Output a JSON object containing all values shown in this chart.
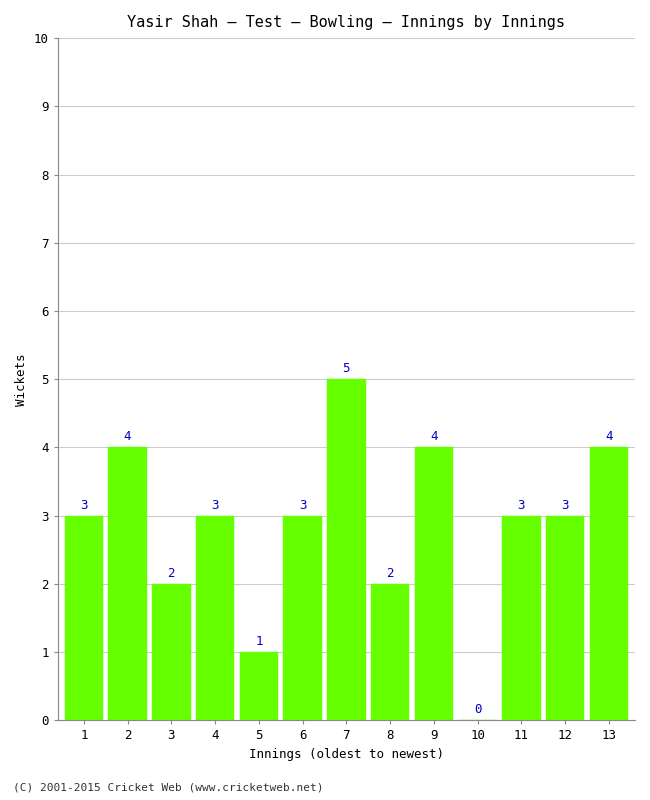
{
  "title": "Yasir Shah – Test – Bowling – Innings by Innings",
  "xlabel": "Innings (oldest to newest)",
  "ylabel": "Wickets",
  "categories": [
    "1",
    "2",
    "3",
    "4",
    "5",
    "6",
    "7",
    "8",
    "9",
    "10",
    "11",
    "12",
    "13"
  ],
  "values": [
    3,
    4,
    2,
    3,
    1,
    3,
    5,
    2,
    4,
    0,
    3,
    3,
    4
  ],
  "bar_color": "#66FF00",
  "bar_edge_color": "#66FF00",
  "label_color": "#0000CC",
  "background_color": "#FFFFFF",
  "ylim": [
    0,
    10
  ],
  "yticks": [
    0,
    1,
    2,
    3,
    4,
    5,
    6,
    7,
    8,
    9,
    10
  ],
  "grid_color": "#CCCCCC",
  "title_fontsize": 11,
  "axis_fontsize": 9,
  "tick_fontsize": 9,
  "label_fontsize": 9,
  "footer": "(C) 2001-2015 Cricket Web (www.cricketweb.net)",
  "bar_width": 0.88
}
